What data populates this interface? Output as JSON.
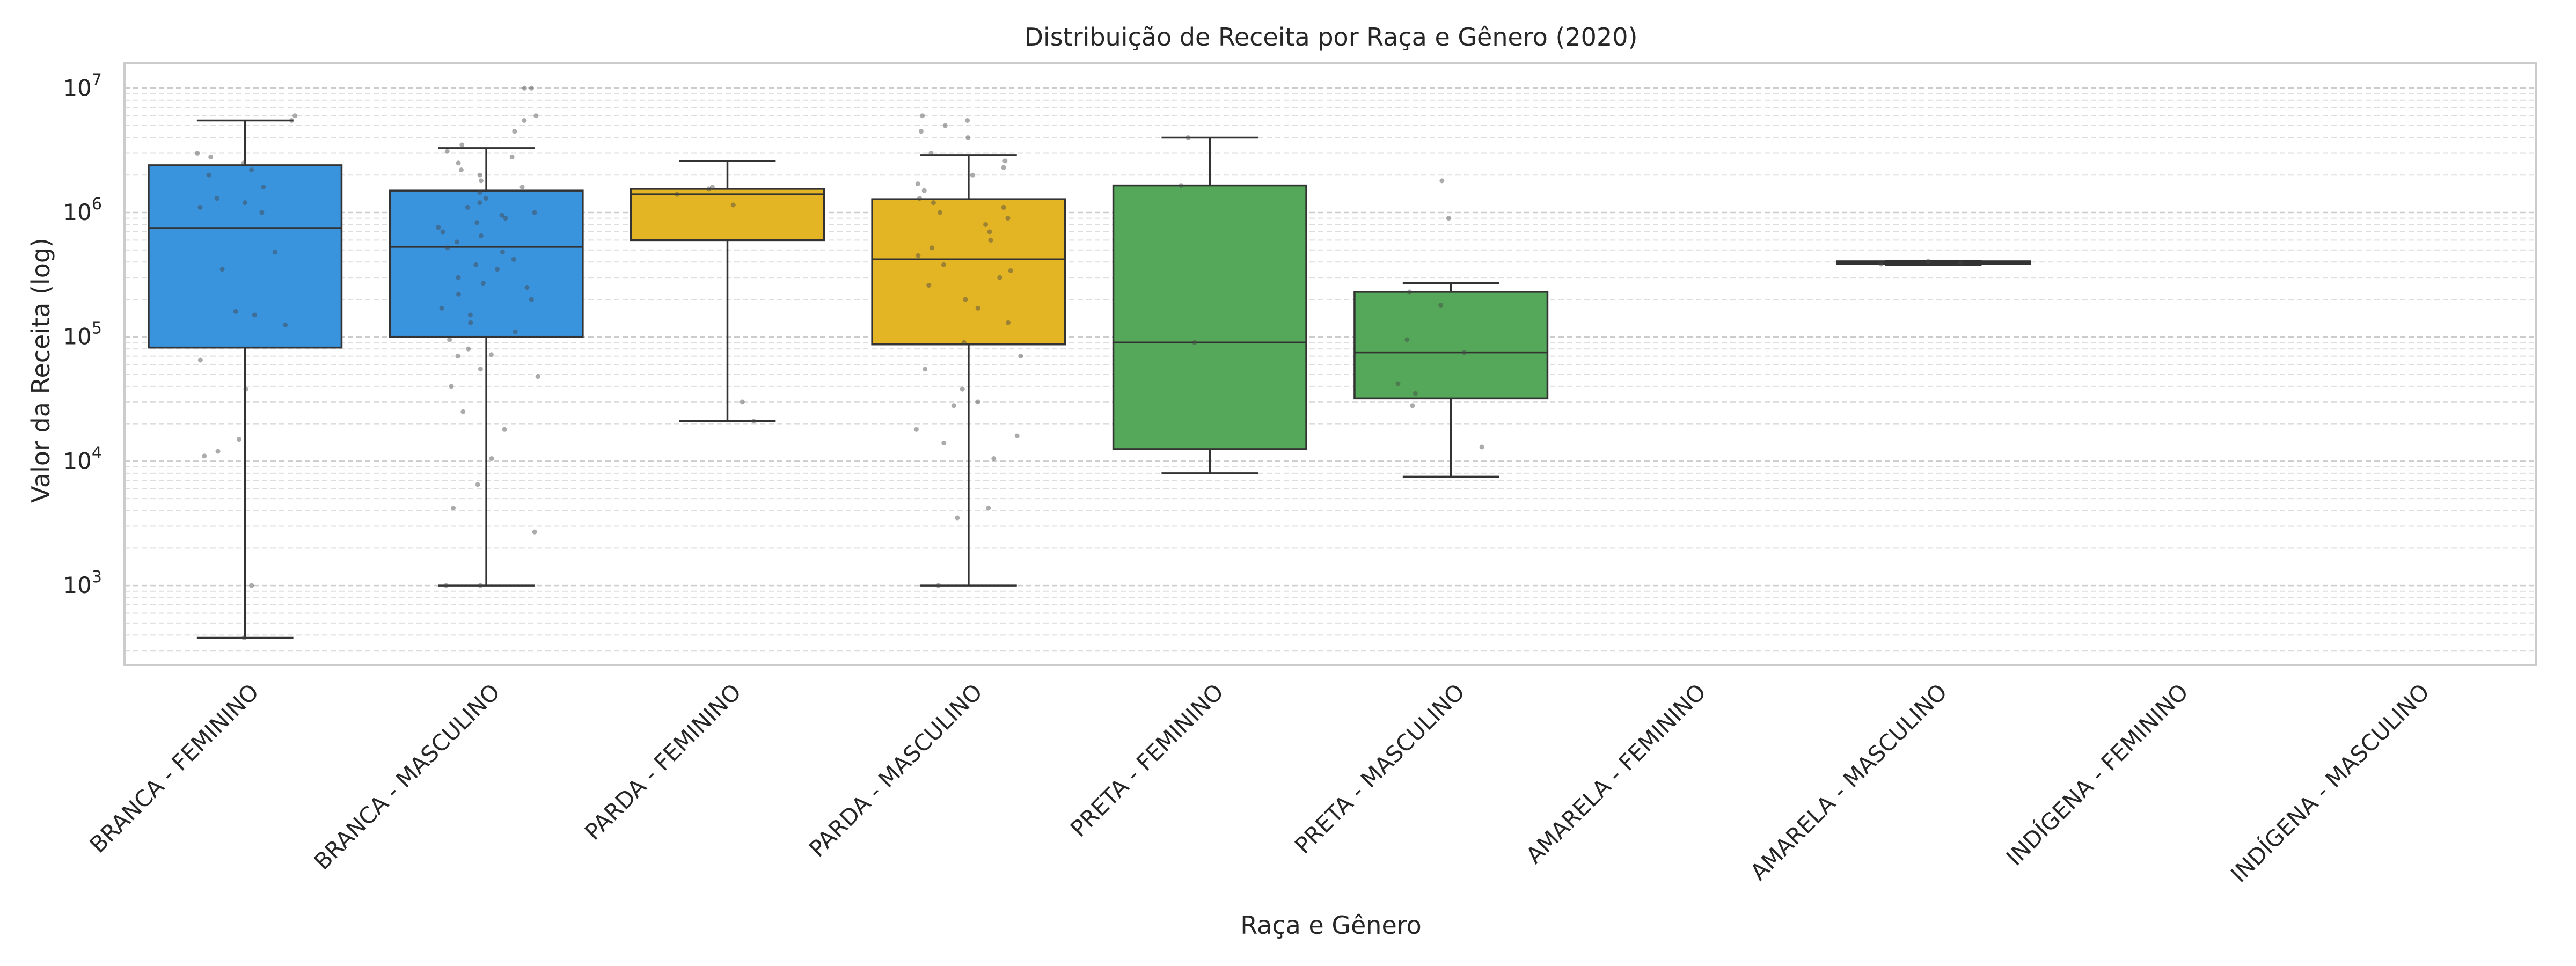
{
  "chart_data": {
    "type": "box",
    "title": "Distribuição de Receita por Raça e Gênero (2020)",
    "xlabel": "Raça e Gênero",
    "ylabel": "Valor da Receita (log)",
    "yscale": "log",
    "ylim": [
      230,
      16000000
    ],
    "y_ticks": [
      {
        "value": 1000,
        "base": "10",
        "exp": "3"
      },
      {
        "value": 10000,
        "base": "10",
        "exp": "4"
      },
      {
        "value": 100000,
        "base": "10",
        "exp": "5"
      },
      {
        "value": 1000000,
        "base": "10",
        "exp": "6"
      },
      {
        "value": 10000000,
        "base": "10",
        "exp": "7"
      }
    ],
    "grid": true,
    "categories": [
      "BRANCA - FEMININO",
      "BRANCA - MASCULINO",
      "PARDA - FEMININO",
      "PARDA - MASCULINO",
      "PRETA - FEMININO",
      "PRETA - MASCULINO",
      "AMARELA - FEMININO",
      "AMARELA - MASCULINO",
      "INDÍGENA - FEMININO",
      "INDÍGENA - MASCULINO"
    ],
    "boxes": [
      {
        "color": "#3a93dd",
        "whislo": 380,
        "q1": 82000,
        "median": 750000,
        "q3": 2400000,
        "whishi": 5500000,
        "points": [
          380,
          1000,
          11000,
          12000,
          15000,
          38000,
          65000,
          125000,
          150000,
          160000,
          350000,
          480000,
          1000000,
          1100000,
          1200000,
          1300000,
          1600000,
          2000000,
          2200000,
          2500000,
          2800000,
          3000000,
          5500000,
          6000000
        ]
      },
      {
        "color": "#3a93dd",
        "whislo": 1000,
        "q1": 100000,
        "median": 530000,
        "q3": 1500000,
        "whishi": 3300000,
        "points": [
          1000,
          1000,
          2700,
          4200,
          6500,
          10500,
          18000,
          25000,
          40000,
          48000,
          55000,
          70000,
          72000,
          80000,
          95000,
          110000,
          130000,
          150000,
          170000,
          200000,
          220000,
          250000,
          270000,
          300000,
          350000,
          380000,
          420000,
          480000,
          520000,
          580000,
          650000,
          700000,
          760000,
          830000,
          900000,
          950000,
          1000000,
          1100000,
          1200000,
          1300000,
          1450000,
          1600000,
          1800000,
          2000000,
          2200000,
          2500000,
          2800000,
          3100000,
          3500000,
          4500000,
          5500000,
          6000000,
          10000000,
          10000000
        ]
      },
      {
        "color": "#e3b423",
        "whislo": 21000,
        "q1": 600000,
        "median": 1400000,
        "q3": 1550000,
        "whishi": 2600000,
        "points": [
          21000,
          30000,
          1150000,
          1400000,
          1550000,
          1600000
        ]
      },
      {
        "color": "#e3b423",
        "whislo": 1000,
        "q1": 87000,
        "median": 420000,
        "q3": 1280000,
        "whishi": 2900000,
        "points": [
          1000,
          3500,
          4200,
          10500,
          14000,
          16000,
          18000,
          28000,
          30000,
          38000,
          55000,
          70000,
          90000,
          130000,
          170000,
          200000,
          260000,
          300000,
          340000,
          380000,
          450000,
          520000,
          600000,
          700000,
          800000,
          900000,
          1000000,
          1100000,
          1200000,
          1300000,
          1500000,
          1700000,
          2000000,
          2300000,
          2600000,
          3000000,
          4000000,
          4500000,
          5000000,
          5500000,
          6000000
        ]
      },
      {
        "color": "#55a859",
        "whislo": 8000,
        "q1": 12500,
        "median": 90000,
        "q3": 1650000,
        "whishi": 4000000,
        "points": [
          90000,
          1650000,
          4000000
        ]
      },
      {
        "color": "#55a859",
        "whislo": 7500,
        "q1": 32000,
        "median": 75000,
        "q3": 230000,
        "whishi": 270000,
        "points": [
          13000,
          28000,
          35000,
          42000,
          75000,
          95000,
          180000,
          230000,
          900000,
          1800000
        ]
      },
      null,
      {
        "color": "#e3b423",
        "whislo": 380000,
        "q1": 385000,
        "median": 395000,
        "q3": 405000,
        "whishi": 410000,
        "points": [
          385000,
          395000,
          405000
        ]
      },
      null,
      null
    ]
  }
}
